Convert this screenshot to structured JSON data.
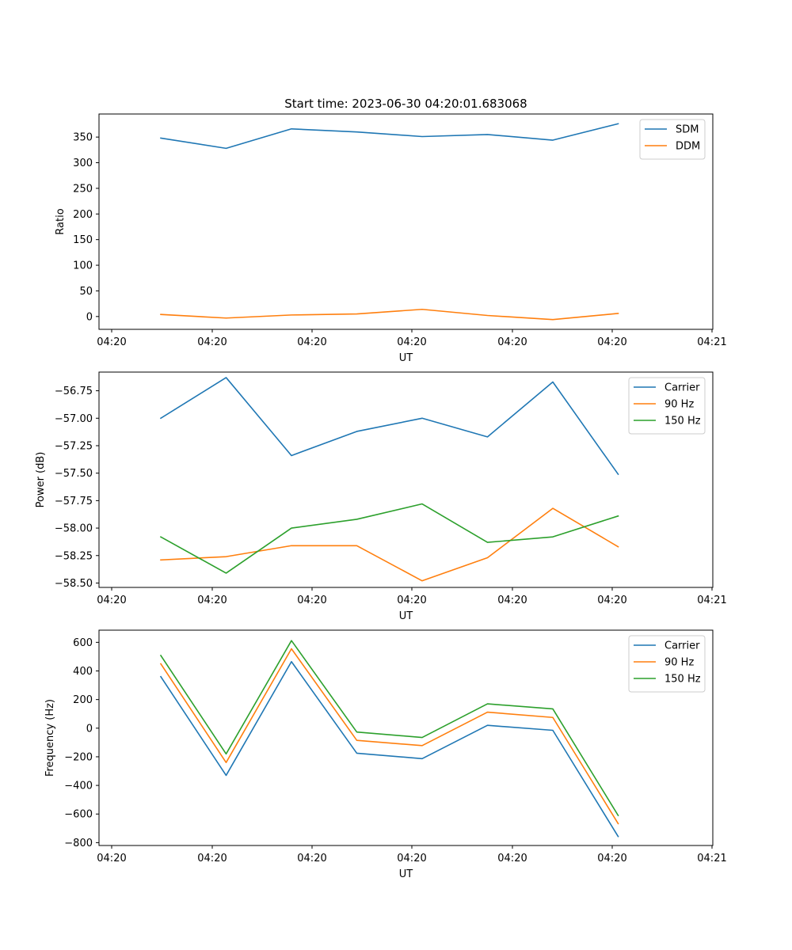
{
  "chart_data": [
    {
      "type": "line",
      "title": "Start time: 2023-06-30 04:20:01.683068",
      "xlabel": "UT",
      "ylabel": "Ratio",
      "x_tick_labels": [
        "04:20",
        "04:20",
        "04:20",
        "04:20",
        "04:20",
        "04:20",
        "04:21"
      ],
      "y_ticks": [
        0,
        50,
        100,
        150,
        200,
        250,
        300,
        350
      ],
      "y_tick_labels": [
        "0",
        "50",
        "100",
        "150",
        "200",
        "250",
        "300",
        "350"
      ],
      "ylim": [
        -25,
        395
      ],
      "legend": "top-right",
      "grid": false,
      "series": [
        {
          "name": "SDM",
          "color": "#1f77b4",
          "values": [
            348,
            328,
            366,
            360,
            351,
            355,
            344,
            376
          ]
        },
        {
          "name": "DDM",
          "color": "#ff7f0e",
          "values": [
            4,
            -3,
            3,
            5,
            14,
            2,
            -6,
            6
          ]
        }
      ]
    },
    {
      "type": "line",
      "title": "",
      "xlabel": "UT",
      "ylabel": "Power (dB)",
      "x_tick_labels": [
        "04:20",
        "04:20",
        "04:20",
        "04:20",
        "04:20",
        "04:20",
        "04:21"
      ],
      "y_ticks": [
        -58.5,
        -58.25,
        -58.0,
        -57.75,
        -57.5,
        -57.25,
        -57.0,
        -56.75
      ],
      "y_tick_labels": [
        "−58.50",
        "−58.25",
        "−58.00",
        "−57.75",
        "−57.50",
        "−57.25",
        "−57.00",
        "−56.75"
      ],
      "ylim": [
        -58.54,
        -56.58
      ],
      "legend": "top-right",
      "grid": false,
      "series": [
        {
          "name": "Carrier",
          "color": "#1f77b4",
          "values": [
            -57.0,
            -56.63,
            -57.34,
            -57.12,
            -57.0,
            -57.17,
            -56.67,
            -57.51
          ]
        },
        {
          "name": "90 Hz",
          "color": "#ff7f0e",
          "values": [
            -58.29,
            -58.26,
            -58.16,
            -58.16,
            -58.48,
            -58.27,
            -57.82,
            -58.17
          ]
        },
        {
          "name": "150 Hz",
          "color": "#2ca02c",
          "values": [
            -58.08,
            -58.41,
            -58.0,
            -57.92,
            -57.78,
            -58.13,
            -58.08,
            -57.89
          ]
        }
      ]
    },
    {
      "type": "line",
      "title": "",
      "xlabel": "UT",
      "ylabel": "Frequency (Hz)",
      "x_tick_labels": [
        "04:20",
        "04:20",
        "04:20",
        "04:20",
        "04:20",
        "04:20",
        "04:21"
      ],
      "y_ticks": [
        -800,
        -600,
        -400,
        -200,
        0,
        200,
        400,
        600
      ],
      "y_tick_labels": [
        "−800",
        "−600",
        "−400",
        "−200",
        "0",
        "200",
        "400",
        "600"
      ],
      "ylim": [
        -820,
        685
      ],
      "legend": "top-right",
      "grid": false,
      "series": [
        {
          "name": "Carrier",
          "color": "#1f77b4",
          "values": [
            360,
            -330,
            465,
            -175,
            -213,
            20,
            -15,
            -757
          ]
        },
        {
          "name": "90 Hz",
          "color": "#ff7f0e",
          "values": [
            450,
            -240,
            555,
            -85,
            -122,
            112,
            75,
            -667
          ]
        },
        {
          "name": "150 Hz",
          "color": "#2ca02c",
          "values": [
            508,
            -180,
            612,
            -27,
            -65,
            170,
            135,
            -610
          ]
        }
      ]
    }
  ]
}
